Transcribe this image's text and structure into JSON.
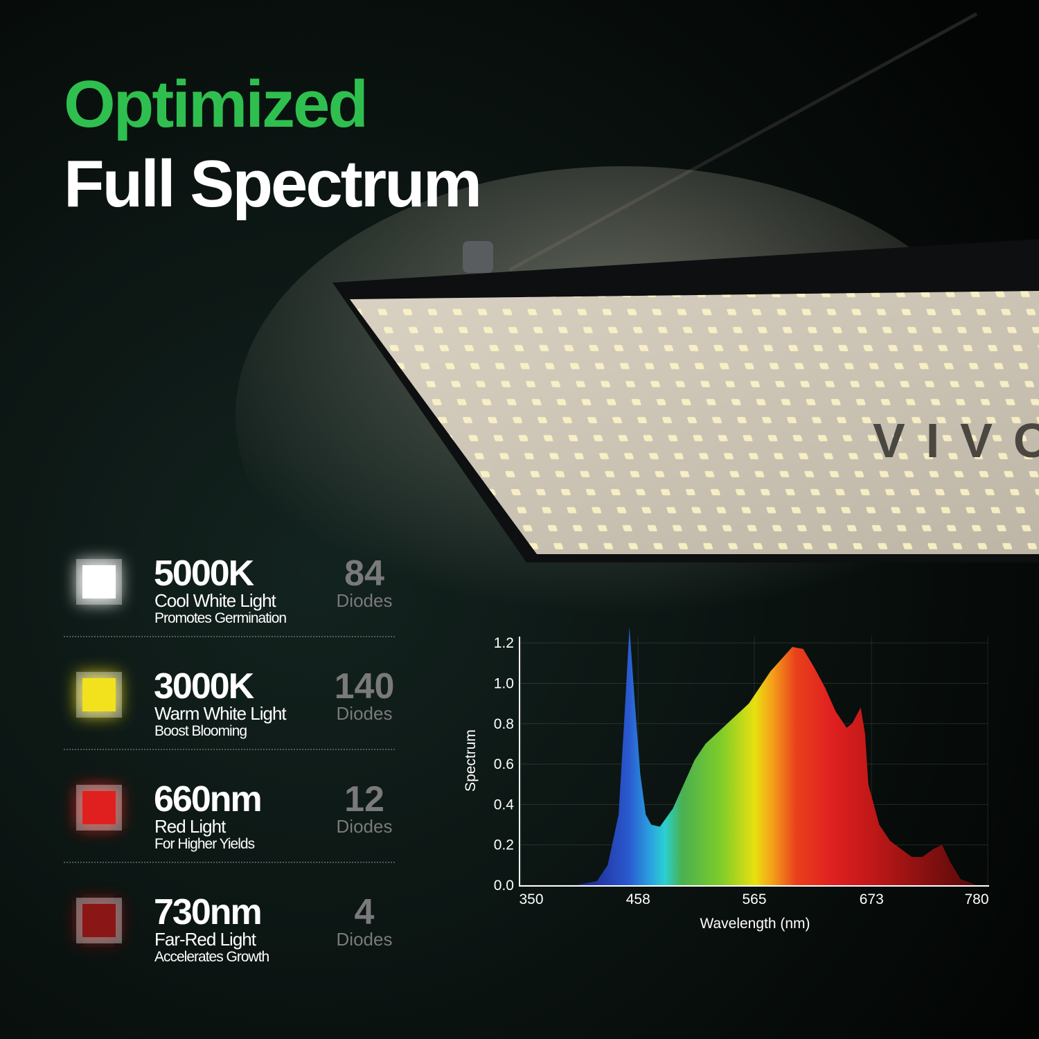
{
  "header": {
    "title": "Optimized",
    "subtitle": "Full Spectrum"
  },
  "legend_items": [
    {
      "name": "5000K",
      "description": "Cool White Light",
      "benefit": "Promotes Germination",
      "count": "84",
      "unit": "Diodes",
      "color": "#ffffff"
    },
    {
      "name": "3000K",
      "description": "Warm White Light",
      "benefit": "Boost Blooming",
      "count": "140",
      "unit": "Diodes",
      "color": "#f2e21e"
    },
    {
      "name": "660nm",
      "description": "Red Light",
      "benefit": "For Higher Yields",
      "count": "12",
      "unit": "Diodes",
      "color": "#e0201e"
    },
    {
      "name": "730nm",
      "description": "Far-Red Light",
      "benefit": "Accelerates Growth",
      "count": "4",
      "unit": "Diodes",
      "color": "#8b1616"
    }
  ],
  "chart_data": {
    "type": "area",
    "x_label": "Wavelength (nm)",
    "y_label": "Spectrum",
    "x": [
      400,
      420,
      430,
      440,
      445,
      450,
      455,
      460,
      465,
      470,
      478,
      490,
      500,
      510,
      520,
      540,
      560,
      580,
      600,
      610,
      620,
      630,
      640,
      650,
      655,
      663,
      667,
      670,
      680,
      690,
      700,
      710,
      720,
      730,
      738,
      745,
      755,
      770
    ],
    "values": [
      0,
      0.02,
      0.1,
      0.35,
      0.8,
      1.28,
      0.9,
      0.55,
      0.35,
      0.3,
      0.29,
      0.38,
      0.5,
      0.62,
      0.7,
      0.8,
      0.9,
      1.06,
      1.18,
      1.17,
      1.08,
      0.98,
      0.86,
      0.78,
      0.8,
      0.88,
      0.75,
      0.5,
      0.3,
      0.22,
      0.18,
      0.14,
      0.14,
      0.18,
      0.2,
      0.12,
      0.03,
      0
    ],
    "xlim": [
      350,
      780
    ],
    "xticks": [
      350,
      458,
      565,
      673,
      780
    ],
    "ylim": [
      0,
      1.3
    ],
    "yticks": [
      {
        "value": 0,
        "label": "0.0"
      },
      0.2,
      0.4,
      0.6,
      0.8,
      {
        "value": 1,
        "label": "1.0"
      },
      1.2
    ],
    "grid": true
  }
}
